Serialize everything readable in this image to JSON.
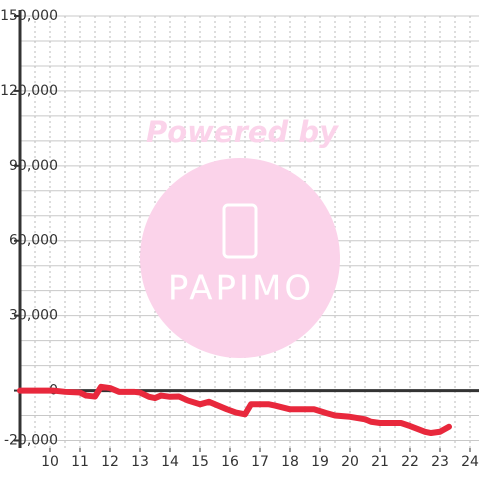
{
  "chart_data": {
    "type": "line",
    "watermark": {
      "title": "Powered by",
      "brand": "PAPIMO"
    },
    "x": [
      9,
      10.1,
      10.5,
      11,
      11.2,
      11.5,
      11.7,
      12,
      12.3,
      12.8,
      13,
      13.3,
      13.5,
      13.7,
      14,
      14.3,
      14.6,
      15,
      15.3,
      15.5,
      15.9,
      16.2,
      16.5,
      16.7,
      17.3,
      17.5,
      18,
      18.8,
      19.2,
      19.5,
      20,
      20.5,
      20.7,
      21,
      21.7,
      22,
      22.5,
      22.7,
      23,
      23.3
    ],
    "series": [
      {
        "color": "#e8283c",
        "values": [
          0,
          0,
          -500,
          -800,
          -2000,
          -2400,
          1500,
          1000,
          -500,
          -500,
          -800,
          -2500,
          -3000,
          -2000,
          -2500,
          -2400,
          -4000,
          -5500,
          -4500,
          -5500,
          -7500,
          -8800,
          -9500,
          -5500,
          -5500,
          -6000,
          -7500,
          -7500,
          -9000,
          -10000,
          -10500,
          -11500,
          -12500,
          -13000,
          -13000,
          -14200,
          -16500,
          -17000,
          -16500,
          -14500
        ]
      }
    ],
    "xlim": [
      9,
      24.3
    ],
    "xticks": [
      10,
      11,
      12,
      13,
      14,
      15,
      16,
      17,
      18,
      19,
      20,
      21,
      22,
      23,
      24
    ],
    "xgrid": [
      9.5,
      10,
      10.5,
      11,
      11.5,
      12,
      12.5,
      13,
      13.5,
      14,
      14.5,
      15,
      15.5,
      16,
      16.5,
      17,
      17.5,
      18,
      18.5,
      19,
      19.5,
      20,
      20.5,
      21,
      21.5,
      22,
      22.5,
      23,
      23.5,
      24
    ],
    "ylim": [
      -23000,
      150000
    ],
    "yticks": [
      {
        "value": -20000,
        "label": "-20,000"
      },
      0,
      {
        "value": 30000,
        "label": "30,000"
      },
      {
        "value": 60000,
        "label": "60,000"
      },
      {
        "value": 90000,
        "label": "90,000"
      },
      {
        "value": 120000,
        "label": "120,000"
      },
      {
        "value": 150000,
        "label": "150,000"
      }
    ],
    "ygrid": [
      -20000,
      -10000,
      10000,
      20000,
      30000,
      40000,
      50000,
      60000,
      70000,
      80000,
      90000,
      100000,
      110000,
      120000,
      130000,
      140000,
      150000
    ],
    "grid": true
  }
}
